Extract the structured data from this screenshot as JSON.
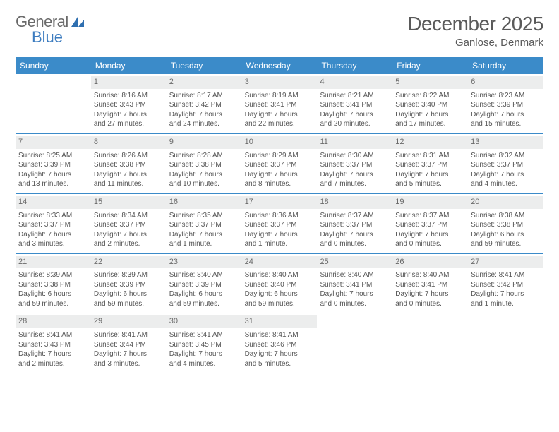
{
  "brand": {
    "word1": "General",
    "word2": "Blue",
    "logo_color": "#2f6fb0"
  },
  "title": "December 2025",
  "location": "Ganlose, Denmark",
  "colors": {
    "header_bar": "#3b8bc9",
    "header_text": "#ffffff",
    "daynum_bg": "#eceded",
    "divider": "#3b8bc9",
    "body_text": "#555555"
  },
  "days_of_week": [
    "Sunday",
    "Monday",
    "Tuesday",
    "Wednesday",
    "Thursday",
    "Friday",
    "Saturday"
  ],
  "weeks": [
    [
      {
        "empty": true
      },
      {
        "n": "1",
        "sr": "Sunrise: 8:16 AM",
        "ss": "Sunset: 3:43 PM",
        "d1": "Daylight: 7 hours",
        "d2": "and 27 minutes."
      },
      {
        "n": "2",
        "sr": "Sunrise: 8:17 AM",
        "ss": "Sunset: 3:42 PM",
        "d1": "Daylight: 7 hours",
        "d2": "and 24 minutes."
      },
      {
        "n": "3",
        "sr": "Sunrise: 8:19 AM",
        "ss": "Sunset: 3:41 PM",
        "d1": "Daylight: 7 hours",
        "d2": "and 22 minutes."
      },
      {
        "n": "4",
        "sr": "Sunrise: 8:21 AM",
        "ss": "Sunset: 3:41 PM",
        "d1": "Daylight: 7 hours",
        "d2": "and 20 minutes."
      },
      {
        "n": "5",
        "sr": "Sunrise: 8:22 AM",
        "ss": "Sunset: 3:40 PM",
        "d1": "Daylight: 7 hours",
        "d2": "and 17 minutes."
      },
      {
        "n": "6",
        "sr": "Sunrise: 8:23 AM",
        "ss": "Sunset: 3:39 PM",
        "d1": "Daylight: 7 hours",
        "d2": "and 15 minutes."
      }
    ],
    [
      {
        "n": "7",
        "sr": "Sunrise: 8:25 AM",
        "ss": "Sunset: 3:39 PM",
        "d1": "Daylight: 7 hours",
        "d2": "and 13 minutes."
      },
      {
        "n": "8",
        "sr": "Sunrise: 8:26 AM",
        "ss": "Sunset: 3:38 PM",
        "d1": "Daylight: 7 hours",
        "d2": "and 11 minutes."
      },
      {
        "n": "9",
        "sr": "Sunrise: 8:28 AM",
        "ss": "Sunset: 3:38 PM",
        "d1": "Daylight: 7 hours",
        "d2": "and 10 minutes."
      },
      {
        "n": "10",
        "sr": "Sunrise: 8:29 AM",
        "ss": "Sunset: 3:37 PM",
        "d1": "Daylight: 7 hours",
        "d2": "and 8 minutes."
      },
      {
        "n": "11",
        "sr": "Sunrise: 8:30 AM",
        "ss": "Sunset: 3:37 PM",
        "d1": "Daylight: 7 hours",
        "d2": "and 7 minutes."
      },
      {
        "n": "12",
        "sr": "Sunrise: 8:31 AM",
        "ss": "Sunset: 3:37 PM",
        "d1": "Daylight: 7 hours",
        "d2": "and 5 minutes."
      },
      {
        "n": "13",
        "sr": "Sunrise: 8:32 AM",
        "ss": "Sunset: 3:37 PM",
        "d1": "Daylight: 7 hours",
        "d2": "and 4 minutes."
      }
    ],
    [
      {
        "n": "14",
        "sr": "Sunrise: 8:33 AM",
        "ss": "Sunset: 3:37 PM",
        "d1": "Daylight: 7 hours",
        "d2": "and 3 minutes."
      },
      {
        "n": "15",
        "sr": "Sunrise: 8:34 AM",
        "ss": "Sunset: 3:37 PM",
        "d1": "Daylight: 7 hours",
        "d2": "and 2 minutes."
      },
      {
        "n": "16",
        "sr": "Sunrise: 8:35 AM",
        "ss": "Sunset: 3:37 PM",
        "d1": "Daylight: 7 hours",
        "d2": "and 1 minute."
      },
      {
        "n": "17",
        "sr": "Sunrise: 8:36 AM",
        "ss": "Sunset: 3:37 PM",
        "d1": "Daylight: 7 hours",
        "d2": "and 1 minute."
      },
      {
        "n": "18",
        "sr": "Sunrise: 8:37 AM",
        "ss": "Sunset: 3:37 PM",
        "d1": "Daylight: 7 hours",
        "d2": "and 0 minutes."
      },
      {
        "n": "19",
        "sr": "Sunrise: 8:37 AM",
        "ss": "Sunset: 3:37 PM",
        "d1": "Daylight: 7 hours",
        "d2": "and 0 minutes."
      },
      {
        "n": "20",
        "sr": "Sunrise: 8:38 AM",
        "ss": "Sunset: 3:38 PM",
        "d1": "Daylight: 6 hours",
        "d2": "and 59 minutes."
      }
    ],
    [
      {
        "n": "21",
        "sr": "Sunrise: 8:39 AM",
        "ss": "Sunset: 3:38 PM",
        "d1": "Daylight: 6 hours",
        "d2": "and 59 minutes."
      },
      {
        "n": "22",
        "sr": "Sunrise: 8:39 AM",
        "ss": "Sunset: 3:39 PM",
        "d1": "Daylight: 6 hours",
        "d2": "and 59 minutes."
      },
      {
        "n": "23",
        "sr": "Sunrise: 8:40 AM",
        "ss": "Sunset: 3:39 PM",
        "d1": "Daylight: 6 hours",
        "d2": "and 59 minutes."
      },
      {
        "n": "24",
        "sr": "Sunrise: 8:40 AM",
        "ss": "Sunset: 3:40 PM",
        "d1": "Daylight: 6 hours",
        "d2": "and 59 minutes."
      },
      {
        "n": "25",
        "sr": "Sunrise: 8:40 AM",
        "ss": "Sunset: 3:41 PM",
        "d1": "Daylight: 7 hours",
        "d2": "and 0 minutes."
      },
      {
        "n": "26",
        "sr": "Sunrise: 8:40 AM",
        "ss": "Sunset: 3:41 PM",
        "d1": "Daylight: 7 hours",
        "d2": "and 0 minutes."
      },
      {
        "n": "27",
        "sr": "Sunrise: 8:41 AM",
        "ss": "Sunset: 3:42 PM",
        "d1": "Daylight: 7 hours",
        "d2": "and 1 minute."
      }
    ],
    [
      {
        "n": "28",
        "sr": "Sunrise: 8:41 AM",
        "ss": "Sunset: 3:43 PM",
        "d1": "Daylight: 7 hours",
        "d2": "and 2 minutes."
      },
      {
        "n": "29",
        "sr": "Sunrise: 8:41 AM",
        "ss": "Sunset: 3:44 PM",
        "d1": "Daylight: 7 hours",
        "d2": "and 3 minutes."
      },
      {
        "n": "30",
        "sr": "Sunrise: 8:41 AM",
        "ss": "Sunset: 3:45 PM",
        "d1": "Daylight: 7 hours",
        "d2": "and 4 minutes."
      },
      {
        "n": "31",
        "sr": "Sunrise: 8:41 AM",
        "ss": "Sunset: 3:46 PM",
        "d1": "Daylight: 7 hours",
        "d2": "and 5 minutes."
      },
      {
        "empty": true
      },
      {
        "empty": true
      },
      {
        "empty": true
      }
    ]
  ]
}
